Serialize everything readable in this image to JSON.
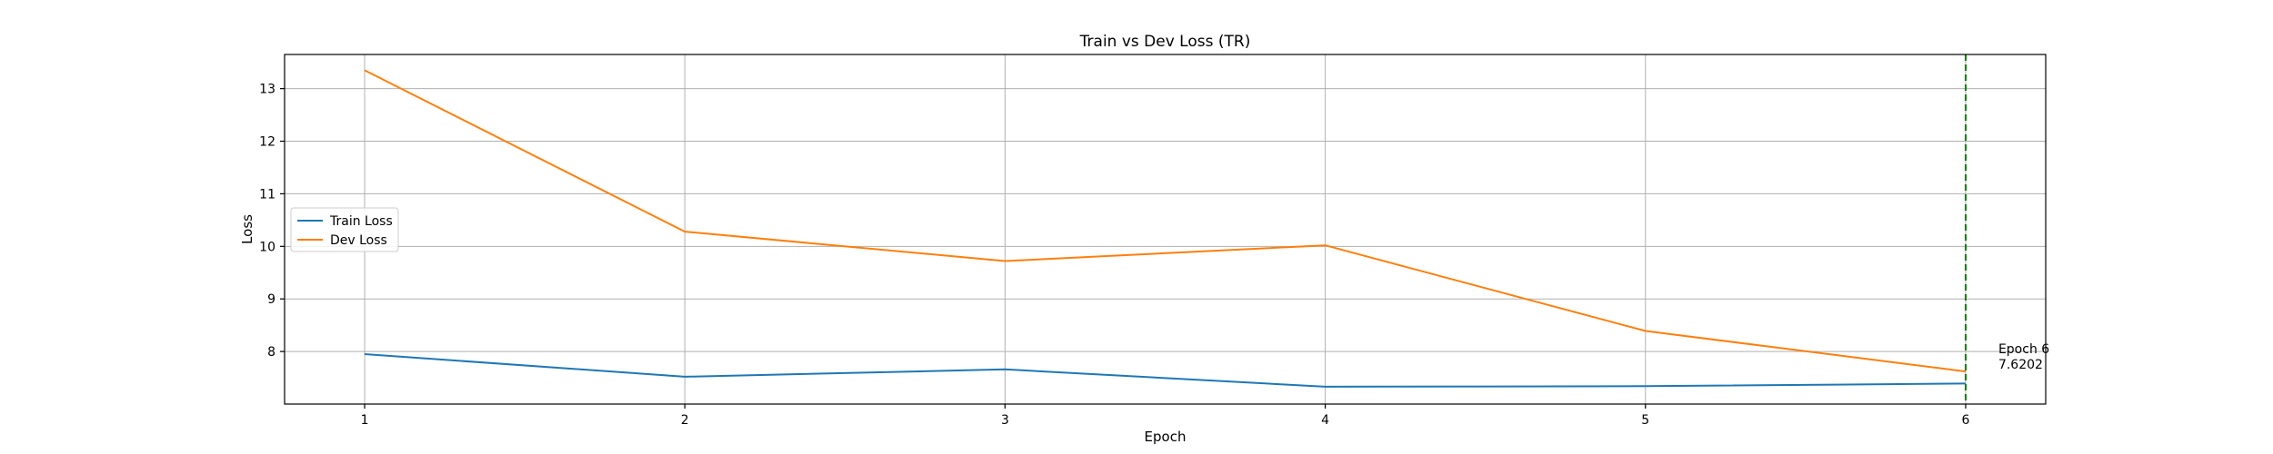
{
  "chart_data": {
    "type": "line",
    "title": "Train vs Dev Loss (TR)",
    "xlabel": "Epoch",
    "ylabel": "Loss",
    "x": [
      1,
      2,
      3,
      4,
      5,
      6
    ],
    "xlim": [
      0.75,
      6.25
    ],
    "ylim": [
      7.0,
      13.65
    ],
    "xticks": [
      1,
      2,
      3,
      4,
      5,
      6
    ],
    "yticks": [
      8,
      9,
      10,
      11,
      12,
      13
    ],
    "grid": true,
    "legend_position": "center-left",
    "series": [
      {
        "name": "Train Loss",
        "color": "#1f77b4",
        "values": [
          7.95,
          7.52,
          7.66,
          7.33,
          7.34,
          7.39
        ]
      },
      {
        "name": "Dev Loss",
        "color": "#ff7f0e",
        "values": [
          13.35,
          10.28,
          9.72,
          10.02,
          8.39,
          7.62
        ]
      }
    ],
    "marker_line": {
      "x": 6,
      "color": "#008000",
      "style": "dashed"
    },
    "annotation": {
      "x": 6,
      "y": 7.62,
      "lines": [
        "Epoch 6",
        "7.6202"
      ]
    }
  }
}
